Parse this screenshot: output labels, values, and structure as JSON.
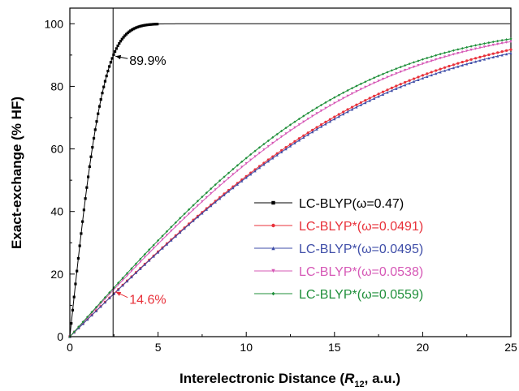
{
  "chart_data": {
    "type": "line",
    "xlabel_prefix": "Interelectronic Distance (",
    "xlabel_var": "R",
    "xlabel_sub": "12",
    "xlabel_suffix": ", a.u.)",
    "ylabel": "Exact-exchange (% HF)",
    "xlim": [
      0,
      25
    ],
    "ylim": [
      0,
      105
    ],
    "xticks": [
      "0",
      "5",
      "10",
      "15",
      "20",
      "25"
    ],
    "yticks": [
      "0",
      "20",
      "40",
      "60",
      "80",
      "100"
    ],
    "grid": false,
    "legend_position": "lower-right",
    "vertical_line_x": 2.45,
    "series": [
      {
        "name": "LC-BLYP(ω=0.47)",
        "omega": 0.47,
        "color": "#000000",
        "marker": "square",
        "shape": "erf",
        "x_end": 5
      },
      {
        "name": "LC-BLYP*(ω=0.0491)",
        "omega": 0.0491,
        "color": "#e8313a",
        "marker": "circle",
        "shape": "erf"
      },
      {
        "name": "LC-BLYP*(ω=0.0495)",
        "omega": 0.0495,
        "color": "#3f4ea8",
        "marker": "triangle-up",
        "shape": "linear-erf"
      },
      {
        "name": "LC-BLYP*(ω=0.0538)",
        "omega": 0.0538,
        "color": "#d658b6",
        "marker": "triangle-down",
        "shape": "erf"
      },
      {
        "name": "LC-BLYP*(ω=0.0559)",
        "omega": 0.0559,
        "color": "#1f8f3a",
        "marker": "diamond",
        "shape": "erf"
      }
    ],
    "annotations": [
      {
        "text": "89.9%",
        "x": 2.45,
        "y": 89.9,
        "color": "#000000"
      },
      {
        "text": "14.6%",
        "x": 2.45,
        "y": 14.6,
        "color": "#e8313a"
      }
    ]
  }
}
